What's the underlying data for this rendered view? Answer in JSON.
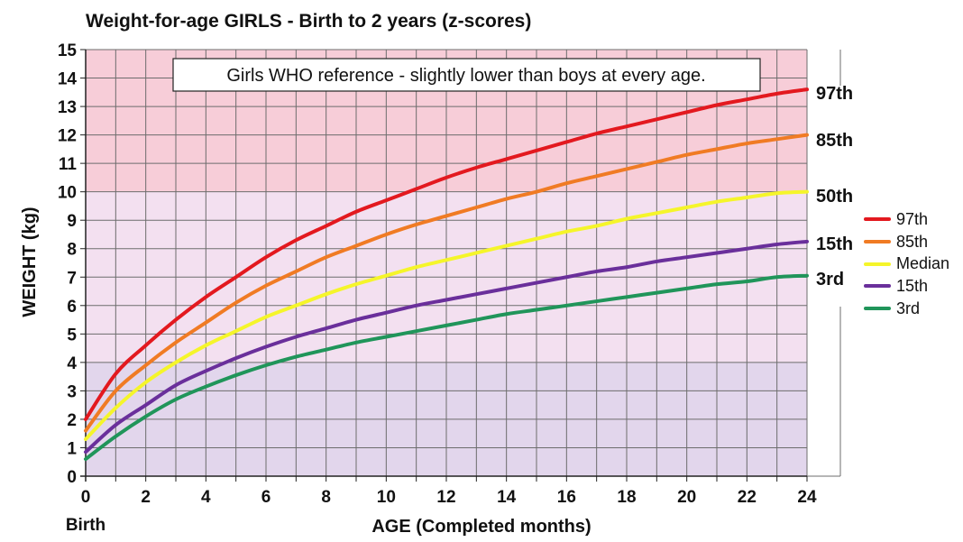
{
  "chart_data": {
    "type": "line",
    "title": "Weight-for-age GIRLS - Birth to 2 years (z-scores)",
    "xlabel": "AGE (Completed months)",
    "ylabel": "WEIGHT (kg)",
    "xlim": [
      0,
      24
    ],
    "ylim": [
      0,
      15
    ],
    "x_ticks": [
      0,
      2,
      4,
      6,
      8,
      10,
      12,
      14,
      16,
      18,
      20,
      22,
      24
    ],
    "y_ticks": [
      0,
      1,
      2,
      3,
      4,
      5,
      6,
      7,
      8,
      9,
      10,
      11,
      12,
      13,
      14,
      15
    ],
    "x_sub_label": "Birth",
    "grid": true,
    "annotation": "Girls WHO reference - slightly lower than boys at every age.",
    "background_bands": [
      {
        "from": 10,
        "to": 15,
        "color": "#f7cdd8"
      },
      {
        "from": 4,
        "to": 10,
        "color": "#f3e0f0"
      },
      {
        "from": 0,
        "to": 4,
        "color": "#e2d6ec"
      }
    ],
    "x": [
      0,
      1,
      2,
      3,
      4,
      5,
      6,
      7,
      8,
      9,
      10,
      11,
      12,
      13,
      14,
      15,
      16,
      17,
      18,
      19,
      20,
      21,
      22,
      23,
      24
    ],
    "series": [
      {
        "name": "97th",
        "end_label": "97th",
        "color": "#e3191f",
        "values": [
          2.0,
          3.6,
          4.6,
          5.5,
          6.3,
          7.0,
          7.7,
          8.3,
          8.8,
          9.3,
          9.7,
          10.1,
          10.5,
          10.85,
          11.15,
          11.45,
          11.75,
          12.05,
          12.3,
          12.55,
          12.8,
          13.05,
          13.25,
          13.45,
          13.6
        ]
      },
      {
        "name": "85th",
        "end_label": "85th",
        "color": "#f07b24",
        "values": [
          1.6,
          3.0,
          3.9,
          4.7,
          5.4,
          6.1,
          6.7,
          7.2,
          7.7,
          8.1,
          8.5,
          8.85,
          9.15,
          9.45,
          9.75,
          10.0,
          10.3,
          10.55,
          10.8,
          11.05,
          11.3,
          11.5,
          11.7,
          11.85,
          12.0
        ]
      },
      {
        "name": "Median",
        "end_label": "50th",
        "color": "#f5f52a",
        "values": [
          1.3,
          2.4,
          3.3,
          4.0,
          4.6,
          5.1,
          5.6,
          6.0,
          6.4,
          6.75,
          7.05,
          7.35,
          7.6,
          7.85,
          8.1,
          8.35,
          8.6,
          8.8,
          9.05,
          9.25,
          9.45,
          9.65,
          9.8,
          9.95,
          10.0
        ]
      },
      {
        "name": "15th",
        "end_label": "15th",
        "color": "#6a2f9b",
        "values": [
          0.85,
          1.8,
          2.5,
          3.2,
          3.7,
          4.15,
          4.55,
          4.9,
          5.2,
          5.5,
          5.75,
          6.0,
          6.2,
          6.4,
          6.6,
          6.8,
          7.0,
          7.2,
          7.35,
          7.55,
          7.7,
          7.85,
          8.0,
          8.15,
          8.25
        ]
      },
      {
        "name": "3rd",
        "end_label": "3rd",
        "color": "#20955a",
        "values": [
          0.6,
          1.4,
          2.1,
          2.7,
          3.15,
          3.55,
          3.9,
          4.2,
          4.45,
          4.7,
          4.9,
          5.1,
          5.3,
          5.5,
          5.7,
          5.85,
          6.0,
          6.15,
          6.3,
          6.45,
          6.6,
          6.75,
          6.85,
          7.0,
          7.05
        ]
      }
    ],
    "legend_position": "right"
  }
}
